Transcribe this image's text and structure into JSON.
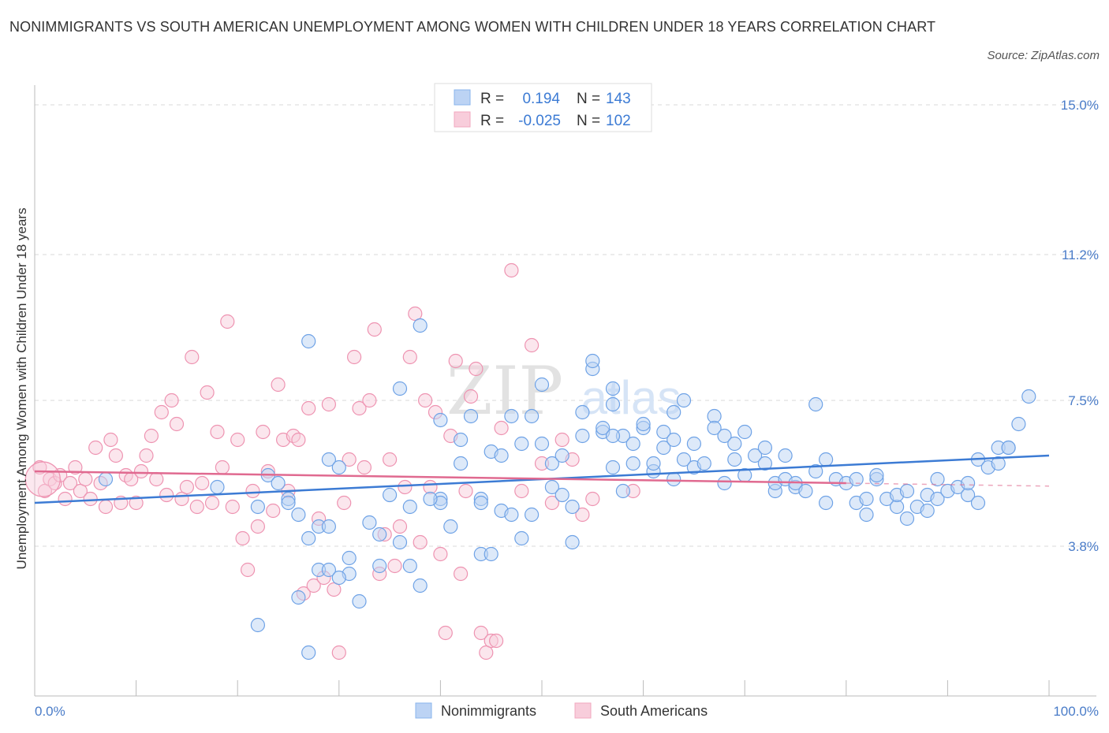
{
  "title": "NONIMMIGRANTS VS SOUTH AMERICAN UNEMPLOYMENT AMONG WOMEN WITH CHILDREN UNDER 18 YEARS CORRELATION CHART",
  "source": "Source: ZipAtlas.com",
  "watermark": {
    "zip": "ZIP",
    "atlas": "atlas"
  },
  "colors": {
    "blue": "#8ab4ec",
    "blue_line": "#3c7bd4",
    "blue_text": "#3c7bd4",
    "pink": "#f2a8bf",
    "pink_line": "#e06a90",
    "grid": "#d8d8d8"
  },
  "legend": {
    "rows": [
      {
        "series": "Nonimmigrants",
        "r_label": "R =",
        "r_value": "0.194",
        "n_label": "N =",
        "n_value": "143"
      },
      {
        "series": "South Americans",
        "r_label": "R =",
        "r_value": "-0.025",
        "n_label": "N =",
        "n_value": "102"
      }
    ]
  },
  "chart_data": {
    "type": "scatter",
    "title": "NONIMMIGRANTS VS SOUTH AMERICAN UNEMPLOYMENT AMONG WOMEN WITH CHILDREN UNDER 18 YEARS CORRELATION CHART",
    "xlabel": "",
    "ylabel": "Unemployment Among Women with Children Under 18 years",
    "xlim": [
      0,
      100
    ],
    "ylim": [
      0,
      15
    ],
    "x_tick_labels": [
      {
        "value": 0,
        "label": "0.0%"
      },
      {
        "value": 100,
        "label": "100.0%"
      }
    ],
    "y_tick_labels": [
      {
        "value": 3.8,
        "label": "3.8%"
      },
      {
        "value": 7.5,
        "label": "7.5%"
      },
      {
        "value": 11.2,
        "label": "11.2%"
      },
      {
        "value": 15.0,
        "label": "15.0%"
      }
    ],
    "grid": true,
    "legend_position": "top-center",
    "series": [
      {
        "name": "Nonimmigrants",
        "color": "#8ab4ec",
        "trend": {
          "x": [
            0,
            100
          ],
          "y": [
            4.9,
            6.1
          ]
        },
        "points": [
          [
            7,
            5.5
          ],
          [
            18,
            5.3
          ],
          [
            22,
            4.8
          ],
          [
            25,
            5.0
          ],
          [
            26,
            4.6
          ],
          [
            27,
            4.0
          ],
          [
            28,
            4.3
          ],
          [
            28,
            3.2
          ],
          [
            29,
            3.2
          ],
          [
            29,
            4.3
          ],
          [
            31,
            3.1
          ],
          [
            31,
            3.5
          ],
          [
            32,
            2.4
          ],
          [
            34,
            3.3
          ],
          [
            35,
            5.1
          ],
          [
            36,
            3.9
          ],
          [
            37,
            3.3
          ],
          [
            38,
            2.8
          ],
          [
            27,
            9.0
          ],
          [
            26,
            2.5
          ],
          [
            29,
            6.0
          ],
          [
            30,
            5.8
          ],
          [
            25,
            4.9
          ],
          [
            22,
            1.8
          ],
          [
            27,
            1.1
          ],
          [
            36,
            7.8
          ],
          [
            38,
            9.4
          ],
          [
            40,
            5.0
          ],
          [
            40,
            7.0
          ],
          [
            40,
            4.9
          ],
          [
            39,
            5.0
          ],
          [
            41,
            4.3
          ],
          [
            42,
            5.9
          ],
          [
            42,
            6.5
          ],
          [
            43,
            7.1
          ],
          [
            44,
            3.6
          ],
          [
            44,
            5.0
          ],
          [
            44,
            4.9
          ],
          [
            45,
            6.2
          ],
          [
            46,
            6.1
          ],
          [
            46,
            4.7
          ],
          [
            47,
            7.1
          ],
          [
            47,
            4.6
          ],
          [
            48,
            4.0
          ],
          [
            48,
            6.4
          ],
          [
            49,
            4.6
          ],
          [
            49,
            7.1
          ],
          [
            50,
            6.4
          ],
          [
            50,
            7.9
          ],
          [
            51,
            5.9
          ],
          [
            51,
            5.3
          ],
          [
            52,
            6.1
          ],
          [
            52,
            5.1
          ],
          [
            53,
            4.8
          ],
          [
            54,
            6.6
          ],
          [
            54,
            7.2
          ],
          [
            55,
            8.3
          ],
          [
            55,
            8.5
          ],
          [
            56,
            6.7
          ],
          [
            56,
            6.8
          ],
          [
            57,
            7.4
          ],
          [
            57,
            5.8
          ],
          [
            57,
            7.8
          ],
          [
            58,
            5.2
          ],
          [
            58,
            6.6
          ],
          [
            59,
            6.4
          ],
          [
            59,
            5.9
          ],
          [
            60,
            6.8
          ],
          [
            60,
            6.9
          ],
          [
            61,
            5.7
          ],
          [
            61,
            5.9
          ],
          [
            62,
            6.7
          ],
          [
            62,
            6.3
          ],
          [
            63,
            6.5
          ],
          [
            63,
            7.2
          ],
          [
            63,
            5.5
          ],
          [
            64,
            6.0
          ],
          [
            64,
            7.5
          ],
          [
            65,
            6.4
          ],
          [
            65,
            5.8
          ],
          [
            66,
            5.9
          ],
          [
            67,
            7.1
          ],
          [
            67,
            6.8
          ],
          [
            68,
            5.4
          ],
          [
            68,
            6.6
          ],
          [
            69,
            6.0
          ],
          [
            69,
            6.4
          ],
          [
            70,
            6.7
          ],
          [
            70,
            5.6
          ],
          [
            71,
            6.1
          ],
          [
            72,
            6.3
          ],
          [
            72,
            5.9
          ],
          [
            73,
            5.2
          ],
          [
            73,
            5.4
          ],
          [
            74,
            5.5
          ],
          [
            74,
            6.1
          ],
          [
            75,
            5.3
          ],
          [
            75,
            5.4
          ],
          [
            76,
            5.2
          ],
          [
            77,
            5.7
          ],
          [
            77,
            7.4
          ],
          [
            78,
            4.9
          ],
          [
            78,
            6.0
          ],
          [
            79,
            5.5
          ],
          [
            80,
            5.4
          ],
          [
            81,
            5.5
          ],
          [
            81,
            4.9
          ],
          [
            82,
            5.0
          ],
          [
            82,
            4.6
          ],
          [
            83,
            5.5
          ],
          [
            83,
            5.6
          ],
          [
            84,
            5.0
          ],
          [
            85,
            4.8
          ],
          [
            85,
            5.1
          ],
          [
            86,
            4.5
          ],
          [
            86,
            5.2
          ],
          [
            87,
            4.8
          ],
          [
            88,
            5.1
          ],
          [
            88,
            4.7
          ],
          [
            89,
            5.0
          ],
          [
            89,
            5.5
          ],
          [
            90,
            5.2
          ],
          [
            91,
            5.3
          ],
          [
            92,
            5.1
          ],
          [
            92,
            5.4
          ],
          [
            93,
            4.9
          ],
          [
            93,
            6.0
          ],
          [
            94,
            5.8
          ],
          [
            95,
            6.3
          ],
          [
            95,
            5.9
          ],
          [
            96,
            6.3
          ],
          [
            97,
            6.9
          ],
          [
            98,
            7.6
          ],
          [
            96,
            6.3
          ],
          [
            57,
            6.6
          ],
          [
            53,
            3.9
          ],
          [
            45,
            3.6
          ],
          [
            33,
            4.4
          ],
          [
            34,
            4.1
          ],
          [
            37,
            4.8
          ],
          [
            30,
            3.0
          ],
          [
            23,
            5.6
          ],
          [
            24,
            5.4
          ]
        ]
      },
      {
        "name": "South Americans",
        "color": "#f2a8bf",
        "trend": {
          "x": [
            0,
            80
          ],
          "y": [
            5.7,
            5.4
          ]
        },
        "points": [
          [
            0.5,
            5.8
          ],
          [
            1,
            5.2
          ],
          [
            1.5,
            5.5
          ],
          [
            2,
            5.4
          ],
          [
            2.5,
            5.6
          ],
          [
            3,
            5.0
          ],
          [
            3.5,
            5.4
          ],
          [
            4,
            5.8
          ],
          [
            4.5,
            5.2
          ],
          [
            5,
            5.5
          ],
          [
            5.5,
            5.0
          ],
          [
            6,
            6.3
          ],
          [
            6.5,
            5.4
          ],
          [
            7,
            4.8
          ],
          [
            7.5,
            6.5
          ],
          [
            8,
            6.1
          ],
          [
            8.5,
            4.9
          ],
          [
            9,
            5.6
          ],
          [
            9.5,
            5.5
          ],
          [
            10,
            4.9
          ],
          [
            10.5,
            5.7
          ],
          [
            11,
            6.1
          ],
          [
            11.5,
            6.6
          ],
          [
            12,
            5.5
          ],
          [
            12.5,
            7.2
          ],
          [
            13,
            5.1
          ],
          [
            13.5,
            7.5
          ],
          [
            14,
            6.9
          ],
          [
            14.5,
            5.0
          ],
          [
            15,
            5.3
          ],
          [
            15.5,
            8.6
          ],
          [
            16,
            4.8
          ],
          [
            16.5,
            5.4
          ],
          [
            17,
            7.7
          ],
          [
            17.5,
            4.9
          ],
          [
            18,
            6.7
          ],
          [
            18.5,
            5.8
          ],
          [
            19,
            9.5
          ],
          [
            19.5,
            4.8
          ],
          [
            20,
            6.5
          ],
          [
            20.5,
            4.0
          ],
          [
            21,
            3.2
          ],
          [
            21.5,
            5.2
          ],
          [
            22,
            4.3
          ],
          [
            22.5,
            6.7
          ],
          [
            23,
            5.7
          ],
          [
            23.5,
            4.7
          ],
          [
            24,
            7.9
          ],
          [
            24.5,
            6.5
          ],
          [
            25,
            5.2
          ],
          [
            25.5,
            6.6
          ],
          [
            26,
            6.5
          ],
          [
            26.5,
            2.6
          ],
          [
            27,
            7.3
          ],
          [
            27.5,
            2.8
          ],
          [
            28,
            4.5
          ],
          [
            28.5,
            3.0
          ],
          [
            29,
            7.4
          ],
          [
            29.5,
            2.7
          ],
          [
            30,
            1.1
          ],
          [
            30.5,
            4.9
          ],
          [
            31,
            6.0
          ],
          [
            31.5,
            8.6
          ],
          [
            32,
            7.3
          ],
          [
            32.5,
            5.8
          ],
          [
            33,
            7.5
          ],
          [
            33.5,
            9.3
          ],
          [
            34,
            3.1
          ],
          [
            34.5,
            4.1
          ],
          [
            35,
            6.0
          ],
          [
            35.5,
            3.3
          ],
          [
            36,
            4.3
          ],
          [
            36.5,
            5.3
          ],
          [
            37,
            8.6
          ],
          [
            37.5,
            9.7
          ],
          [
            38,
            3.9
          ],
          [
            38.5,
            7.5
          ],
          [
            39,
            5.3
          ],
          [
            39.5,
            7.2
          ],
          [
            40,
            3.6
          ],
          [
            40.5,
            1.6
          ],
          [
            41,
            6.6
          ],
          [
            41.5,
            8.5
          ],
          [
            42,
            3.1
          ],
          [
            42.5,
            5.2
          ],
          [
            43,
            7.6
          ],
          [
            43.5,
            8.3
          ],
          [
            44,
            1.6
          ],
          [
            44.5,
            1.1
          ],
          [
            45,
            1.4
          ],
          [
            45.5,
            1.4
          ],
          [
            46,
            6.8
          ],
          [
            47,
            10.8
          ],
          [
            48,
            5.2
          ],
          [
            49,
            8.9
          ],
          [
            50,
            5.9
          ],
          [
            51,
            4.9
          ],
          [
            52,
            6.5
          ],
          [
            53,
            6.0
          ],
          [
            54,
            4.6
          ],
          [
            55,
            5.0
          ],
          [
            59,
            5.2
          ]
        ]
      }
    ]
  },
  "bottom_legend": [
    "Nonimmigrants",
    "South Americans"
  ]
}
